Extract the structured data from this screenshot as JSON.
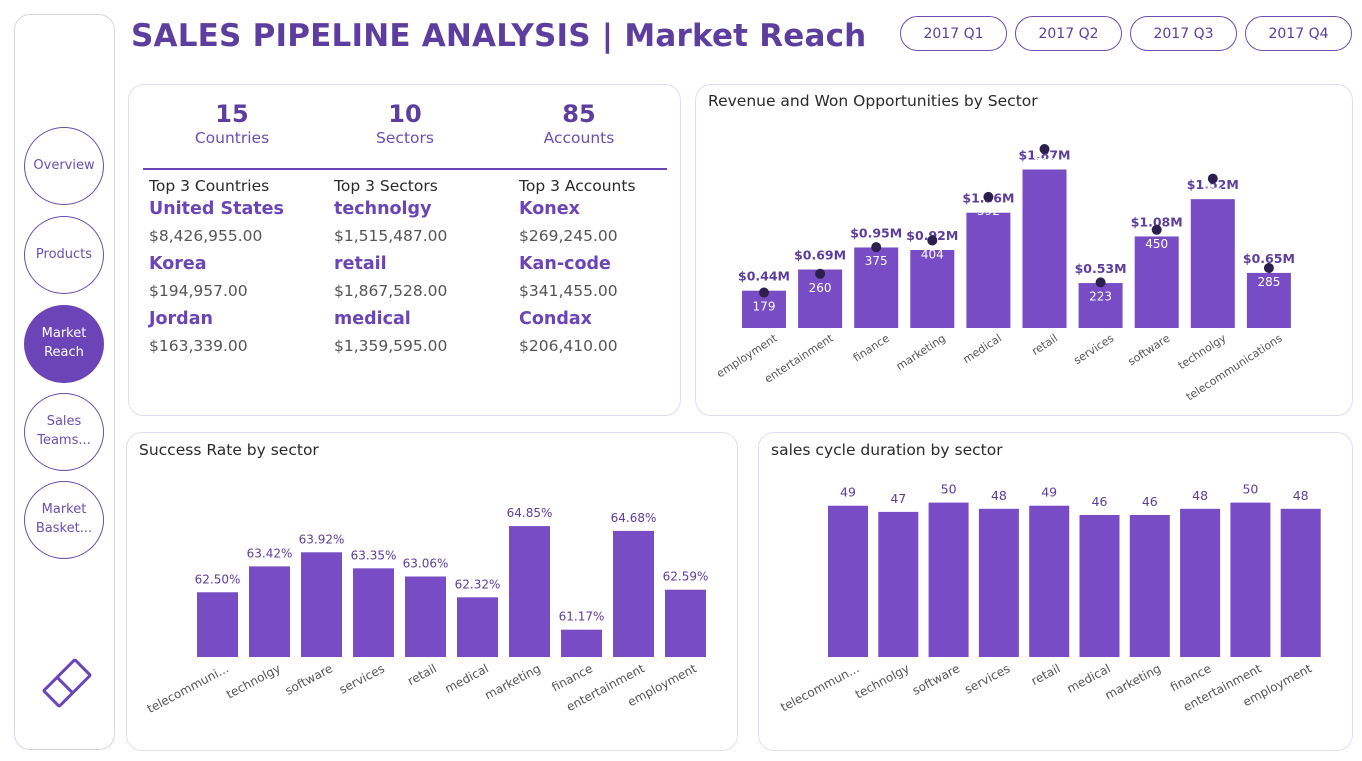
{
  "header": {
    "title": "SALES PIPELINE ANALYSIS | Market Reach",
    "quarters": [
      "2017 Q1",
      "2017 Q2",
      "2017 Q3",
      "2017 Q4"
    ]
  },
  "sidebar": {
    "items": [
      {
        "label": "Overview"
      },
      {
        "label": "Products"
      },
      {
        "label": "Market Reach"
      },
      {
        "label": "Sales Teams..."
      },
      {
        "label": "Market Basket..."
      }
    ]
  },
  "summary": {
    "kpis": [
      {
        "value": "15",
        "label": "Countries"
      },
      {
        "value": "10",
        "label": "Sectors"
      },
      {
        "value": "85",
        "label": "Accounts"
      }
    ],
    "top": [
      {
        "heading": "Top 3 Countries",
        "items": [
          {
            "name": "United States",
            "value": "$8,426,955.00"
          },
          {
            "name": "Korea",
            "value": "$194,957.00"
          },
          {
            "name": "Jordan",
            "value": "$163,339.00"
          }
        ]
      },
      {
        "heading": "Top 3 Sectors",
        "items": [
          {
            "name": "technolgy",
            "value": "$1,515,487.00"
          },
          {
            "name": "retail",
            "value": "$1,867,528.00"
          },
          {
            "name": "medical",
            "value": "$1,359,595.00"
          }
        ]
      },
      {
        "heading": "Top 3 Accounts",
        "items": [
          {
            "name": "Konex",
            "value": "$269,245.00"
          },
          {
            "name": "Kan-code",
            "value": "$341,455.00"
          },
          {
            "name": "Condax",
            "value": "$206,410.00"
          }
        ]
      }
    ]
  },
  "colors": {
    "accent": "#6b45b8",
    "bar": "#774cc4",
    "text": "#5d3d9e",
    "dot": "#2d1f4d"
  },
  "chart_data": [
    {
      "type": "bar",
      "title": "Revenue and Won Opportunities by Sector",
      "categories": [
        "employment",
        "entertainment",
        "finance",
        "marketing",
        "medical",
        "retail",
        "services",
        "software",
        "technolgy",
        "telecommunications"
      ],
      "series": [
        {
          "name": "Revenue",
          "values": [
            0.44,
            0.69,
            0.95,
            0.92,
            1.36,
            1.87,
            0.53,
            1.08,
            1.52,
            0.65
          ],
          "labels": [
            "$0.44M",
            "$0.69M",
            "$0.95M",
            "$0.92M",
            "$1.36M",
            "$1.87M",
            "$0.53M",
            "$1.08M",
            "$1.52M",
            "$0.65M"
          ]
        },
        {
          "name": "Won Opportunities",
          "values": [
            179,
            260,
            375,
            404,
            592,
            799,
            223,
            450,
            671,
            285
          ]
        }
      ],
      "ylim": [
        0,
        2.1
      ]
    },
    {
      "type": "bar",
      "title": "Success Rate by sector",
      "categories": [
        "telecommuni...",
        "technolgy",
        "software",
        "services",
        "retail",
        "medical",
        "marketing",
        "finance",
        "entertainment",
        "employment"
      ],
      "values": [
        62.5,
        63.42,
        63.92,
        63.35,
        63.06,
        62.32,
        64.85,
        61.17,
        64.68,
        62.59
      ],
      "labels": [
        "62.50%",
        "63.42%",
        "63.92%",
        "63.35%",
        "63.06%",
        "62.32%",
        "64.85%",
        "61.17%",
        "64.68%",
        "62.59%"
      ],
      "ylim": [
        60.2,
        65.6
      ]
    },
    {
      "type": "bar",
      "title": "sales cycle duration by sector",
      "categories": [
        "telecommun...",
        "technolgy",
        "software",
        "services",
        "retail",
        "medical",
        "marketing",
        "finance",
        "entertainment",
        "employment"
      ],
      "values": [
        49,
        47,
        50,
        48,
        49,
        46,
        46,
        48,
        50,
        48
      ],
      "ylim": [
        0,
        51.5
      ]
    }
  ]
}
